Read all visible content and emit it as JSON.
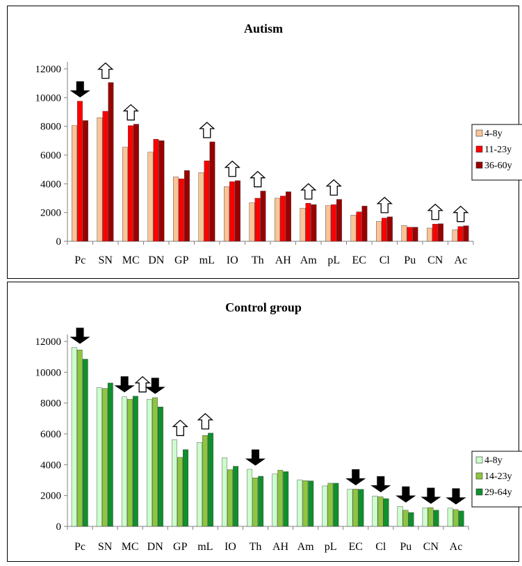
{
  "chart_data": [
    {
      "type": "bar",
      "title": "Autism",
      "categories": [
        "Pc",
        "SN",
        "MC",
        "DN",
        "GP",
        "mL",
        "IO",
        "Th",
        "AH",
        "Am",
        "pL",
        "EC",
        "Cl",
        "Pu",
        "CN",
        "Ac"
      ],
      "ylim": [
        0,
        12000
      ],
      "yticks": [
        "0",
        "2000",
        "4000",
        "6000",
        "8000",
        "10000",
        "12000"
      ],
      "grid": false,
      "legend_position": "right",
      "series": [
        {
          "name": "4-8y",
          "color": "#fbc497",
          "values": [
            8050,
            8600,
            6550,
            6200,
            4480,
            4780,
            3800,
            2680,
            3000,
            2300,
            2480,
            1820,
            1380,
            1100,
            920,
            800
          ]
        },
        {
          "name": "11-23y",
          "color": "#ff0000",
          "values": [
            9750,
            9050,
            8050,
            7100,
            4350,
            5600,
            4150,
            3000,
            3150,
            2650,
            2550,
            2050,
            1620,
            980,
            1200,
            1030
          ]
        },
        {
          "name": "36-60y",
          "color": "#990000",
          "values": [
            8400,
            11050,
            8150,
            7000,
            4930,
            6920,
            4220,
            3500,
            3450,
            2550,
            2920,
            2450,
            1700,
            980,
            1220,
            1080
          ]
        }
      ],
      "annotations": [
        {
          "category": "Pc",
          "arrow": "down"
        },
        {
          "category": "SN",
          "arrow": "up"
        },
        {
          "category": "MC",
          "arrow": "up"
        },
        {
          "category": "mL",
          "arrow": "up"
        },
        {
          "category": "IO",
          "arrow": "up"
        },
        {
          "category": "Th",
          "arrow": "up"
        },
        {
          "category": "Am",
          "arrow": "up"
        },
        {
          "category": "pL",
          "arrow": "up"
        },
        {
          "category": "Cl",
          "arrow": "up"
        },
        {
          "category": "CN",
          "arrow": "up"
        },
        {
          "category": "Ac",
          "arrow": "up"
        }
      ]
    },
    {
      "type": "bar",
      "title": "Control group",
      "categories": [
        "Pc",
        "SN",
        "MC",
        "DN",
        "GP",
        "mL",
        "IO",
        "Th",
        "AH",
        "Am",
        "pL",
        "EC",
        "Cl",
        "Pu",
        "CN",
        "Ac"
      ],
      "ylim": [
        0,
        12000
      ],
      "yticks": [
        "0",
        "2000",
        "4000",
        "6000",
        "8000",
        "10000",
        "12000"
      ],
      "grid": false,
      "legend_position": "right",
      "series": [
        {
          "name": "4-8y",
          "color": "#ccffcc",
          "values": [
            11600,
            9000,
            8400,
            8250,
            5620,
            5450,
            4450,
            3700,
            3400,
            3020,
            2620,
            2400,
            1970,
            1300,
            1200,
            1180
          ]
        },
        {
          "name": "14-23y",
          "color": "#8dc63f",
          "values": [
            11450,
            8950,
            8250,
            8350,
            4480,
            5900,
            3680,
            3150,
            3650,
            2970,
            2800,
            2420,
            1920,
            1050,
            1220,
            1090
          ]
        },
        {
          "name": "29-64y",
          "color": "#108f2d",
          "values": [
            10850,
            9300,
            8450,
            7750,
            4980,
            6050,
            3900,
            3250,
            3550,
            2950,
            2800,
            2400,
            1800,
            900,
            1050,
            1000
          ]
        }
      ],
      "annotations": [
        {
          "category": "Pc",
          "arrow": "down"
        },
        {
          "category": "MC",
          "arrow": "down"
        },
        {
          "category": "MC",
          "arrow": "up"
        },
        {
          "category": "DN",
          "arrow": "down"
        },
        {
          "category": "GP",
          "arrow": "up"
        },
        {
          "category": "mL",
          "arrow": "up"
        },
        {
          "category": "Th",
          "arrow": "down"
        },
        {
          "category": "EC",
          "arrow": "down"
        },
        {
          "category": "Cl",
          "arrow": "down"
        },
        {
          "category": "Pu",
          "arrow": "down"
        },
        {
          "category": "CN",
          "arrow": "down"
        },
        {
          "category": "Ac",
          "arrow": "down"
        }
      ]
    }
  ]
}
